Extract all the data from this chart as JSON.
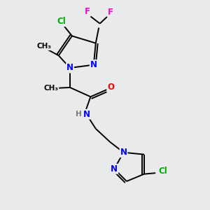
{
  "background_color": "#e8eaec",
  "atom_colors": {
    "N": "#0000ff",
    "O": "#ff0000",
    "Cl": "#00aa00",
    "F": "#ff00cc",
    "H": "#777777"
  },
  "bond_color": "#000000",
  "bond_lw": 1.4,
  "figsize": [
    3.0,
    3.0
  ],
  "dpi": 100,
  "xlim": [
    0,
    10
  ],
  "ylim": [
    0,
    10
  ]
}
